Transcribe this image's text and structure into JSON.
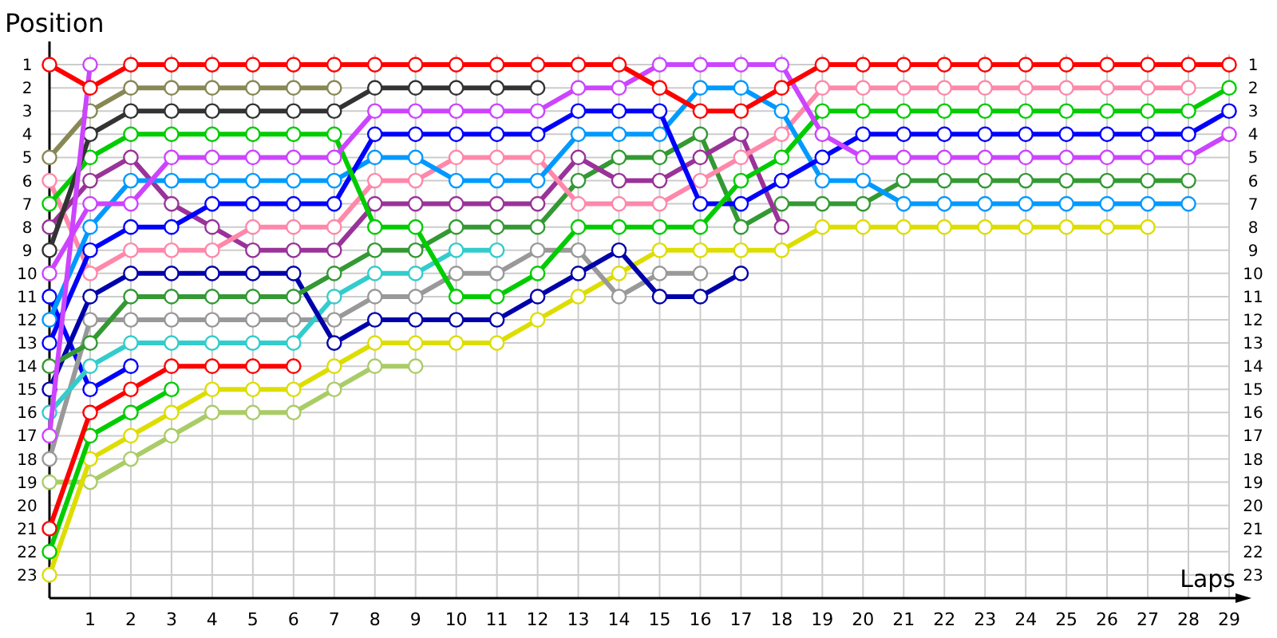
{
  "chart_data": {
    "type": "line",
    "xlabel": "Laps",
    "ylabel": "Position",
    "marker": "circle",
    "grid": true,
    "x": [
      0,
      1,
      2,
      3,
      4,
      5,
      6,
      7,
      8,
      9,
      10,
      11,
      12,
      13,
      14,
      15,
      16,
      17,
      18,
      19,
      20,
      21,
      22,
      23,
      24,
      25,
      26,
      27,
      28,
      29
    ],
    "xlim": [
      0,
      29
    ],
    "xticks": [
      {
        "value": 0,
        "label": null
      },
      1,
      2,
      3,
      4,
      5,
      6,
      7,
      8,
      9,
      10,
      11,
      12,
      13,
      14,
      15,
      16,
      17,
      18,
      19,
      20,
      21,
      22,
      23,
      24,
      25,
      26,
      27,
      28,
      29
    ],
    "ylim": [
      24,
      0
    ],
    "yticks": [
      1,
      2,
      3,
      4,
      5,
      6,
      7,
      8,
      9,
      10,
      11,
      12,
      13,
      14,
      15,
      16,
      17,
      18,
      19,
      20,
      21,
      22,
      23
    ],
    "y2lim": [
      24,
      0
    ],
    "y2ticks": [
      1,
      2,
      3,
      4,
      5,
      6,
      7,
      8,
      9,
      10,
      11,
      12,
      13,
      14,
      15,
      16,
      17,
      18,
      19,
      20,
      21,
      22,
      23
    ],
    "series": [
      {
        "color": "#aacc66",
        "values": [
          19,
          19,
          18,
          17,
          16,
          16,
          16,
          15,
          14,
          14,
          null,
          null,
          null,
          null,
          null,
          null,
          null,
          null,
          null,
          null,
          null,
          null,
          null,
          null,
          null,
          null,
          null,
          null,
          null,
          null
        ]
      },
      {
        "color": "#dddd00",
        "values": [
          23,
          18,
          17,
          16,
          15,
          15,
          15,
          14,
          13,
          13,
          13,
          13,
          12,
          11,
          10,
          9,
          9,
          9,
          9,
          8,
          8,
          8,
          8,
          8,
          8,
          8,
          8,
          8,
          null,
          null
        ]
      },
      {
        "color": "#00cc00",
        "values": [
          22,
          17,
          16,
          15,
          null,
          null,
          null,
          null,
          null,
          null,
          null,
          null,
          null,
          null,
          null,
          null,
          null,
          null,
          null,
          null,
          null,
          null,
          null,
          null,
          null,
          null,
          null,
          null,
          null,
          null
        ]
      },
      {
        "color": "#ff0000",
        "values": [
          21,
          16,
          15,
          14,
          14,
          14,
          14,
          null,
          null,
          null,
          null,
          null,
          null,
          null,
          null,
          null,
          null,
          null,
          null,
          null,
          null,
          null,
          null,
          null,
          null,
          null,
          null,
          null,
          null,
          null
        ]
      },
      {
        "color": "#0000ff",
        "values": [
          11,
          15,
          14,
          null,
          null,
          null,
          null,
          null,
          null,
          null,
          null,
          null,
          null,
          null,
          null,
          null,
          null,
          null,
          null,
          null,
          null,
          null,
          null,
          null,
          null,
          null,
          null,
          null,
          null,
          null
        ]
      },
      {
        "color": "#999999",
        "values": [
          18,
          12,
          12,
          12,
          12,
          12,
          12,
          12,
          11,
          11,
          10,
          10,
          9,
          9,
          11,
          10,
          10,
          null,
          null,
          null,
          null,
          null,
          null,
          null,
          null,
          null,
          null,
          null,
          null,
          null
        ]
      },
      {
        "color": "#33cccc",
        "values": [
          16,
          14,
          13,
          13,
          13,
          13,
          13,
          11,
          10,
          10,
          9,
          9,
          null,
          null,
          null,
          null,
          null,
          null,
          null,
          null,
          null,
          null,
          null,
          null,
          null,
          null,
          null,
          null,
          null,
          null
        ]
      },
      {
        "color": "#0000aa",
        "values": [
          15,
          11,
          10,
          10,
          10,
          10,
          10,
          13,
          12,
          12,
          12,
          12,
          11,
          10,
          9,
          11,
          11,
          10,
          null,
          null,
          null,
          null,
          null,
          null,
          null,
          null,
          null,
          null,
          null,
          null
        ]
      },
      {
        "color": "#339933",
        "values": [
          14,
          13,
          11,
          11,
          11,
          11,
          11,
          10,
          9,
          9,
          8,
          8,
          8,
          6,
          5,
          5,
          4,
          8,
          7,
          7,
          7,
          6,
          6,
          6,
          6,
          6,
          6,
          6,
          6,
          null
        ]
      },
      {
        "color": "#993399",
        "values": [
          8,
          6,
          5,
          7,
          8,
          9,
          9,
          9,
          7,
          7,
          7,
          7,
          7,
          5,
          6,
          6,
          5,
          4,
          8,
          null,
          null,
          null,
          null,
          null,
          null,
          null,
          null,
          null,
          null,
          null
        ]
      },
      {
        "color": "#ff88aa",
        "values": [
          6,
          10,
          9,
          9,
          9,
          8,
          8,
          8,
          6,
          6,
          5,
          5,
          5,
          7,
          7,
          7,
          6,
          5,
          4,
          2,
          2,
          2,
          2,
          2,
          2,
          2,
          2,
          2,
          2,
          null
        ]
      },
      {
        "color": "#0099ff",
        "values": [
          12,
          8,
          6,
          6,
          6,
          6,
          6,
          6,
          5,
          5,
          6,
          6,
          6,
          4,
          4,
          4,
          2,
          2,
          3,
          6,
          6,
          7,
          7,
          7,
          7,
          7,
          7,
          7,
          7,
          null
        ]
      },
      {
        "color": "#0000ff",
        "values": [
          13,
          9,
          8,
          8,
          7,
          7,
          7,
          7,
          4,
          4,
          4,
          4,
          4,
          3,
          3,
          3,
          7,
          7,
          6,
          5,
          4,
          4,
          4,
          4,
          4,
          4,
          4,
          4,
          4,
          3
        ]
      },
      {
        "color": "#00cc00",
        "values": [
          7,
          5,
          4,
          4,
          4,
          4,
          4,
          4,
          8,
          8,
          11,
          11,
          10,
          8,
          8,
          8,
          8,
          6,
          5,
          3,
          3,
          3,
          3,
          3,
          3,
          3,
          3,
          3,
          3,
          2
        ]
      },
      {
        "color": "#333333",
        "values": [
          9,
          4,
          3,
          3,
          3,
          3,
          3,
          3,
          2,
          2,
          2,
          2,
          2,
          null,
          null,
          null,
          null,
          null,
          null,
          null,
          null,
          null,
          null,
          null,
          null,
          null,
          null,
          null,
          null,
          null
        ]
      },
      {
        "color": "#888855",
        "values": [
          5,
          3,
          2,
          2,
          2,
          2,
          2,
          2,
          null,
          null,
          null,
          null,
          null,
          null,
          null,
          null,
          null,
          null,
          null,
          null,
          null,
          null,
          null,
          null,
          null,
          null,
          null,
          null,
          null,
          null
        ]
      },
      {
        "color": "#cc44ff",
        "values": [
          10,
          7,
          7,
          5,
          5,
          5,
          5,
          5,
          3,
          3,
          3,
          3,
          3,
          2,
          2,
          1,
          1,
          1,
          1,
          4,
          5,
          5,
          5,
          5,
          5,
          5,
          5,
          5,
          5,
          4
        ]
      },
      {
        "color": "#cc44ff",
        "values": [
          17,
          1,
          null,
          null,
          null,
          null,
          null,
          null,
          null,
          null,
          null,
          null,
          null,
          null,
          null,
          null,
          null,
          null,
          null,
          null,
          null,
          null,
          null,
          null,
          null,
          null,
          null,
          null,
          null,
          null
        ]
      },
      {
        "color": "#ff0000",
        "values": [
          1,
          2,
          1,
          1,
          1,
          1,
          1,
          1,
          1,
          1,
          1,
          1,
          1,
          1,
          1,
          2,
          3,
          3,
          2,
          1,
          1,
          1,
          1,
          1,
          1,
          1,
          1,
          1,
          1,
          1
        ]
      }
    ]
  }
}
